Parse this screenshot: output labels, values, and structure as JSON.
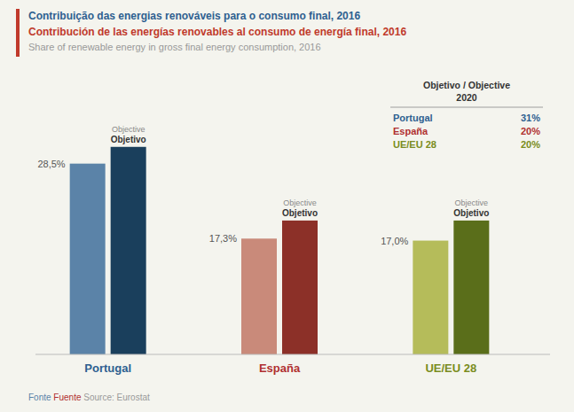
{
  "chart_data": {
    "type": "bar",
    "title": "Contribuição das energias renováveis para o consumo final, 2016",
    "subtitle": "Contribución de las energías renovables al consumo de energía final, 2016",
    "categories": [
      "Portugal",
      "España",
      "UE/EU 28"
    ],
    "colors": [
      "#2e6090",
      "#b03030",
      "#7a8c20"
    ],
    "series": [
      {
        "values": [
          28.5,
          17.3,
          17.0
        ],
        "value_labels": [
          "28,5%",
          "17,3%",
          "17,0%"
        ],
        "colors": [
          "#5b83a8",
          "#c98a7a",
          "#b5bc5a"
        ]
      },
      {
        "name": "Objetivo / Objective",
        "values": [
          31,
          20,
          20
        ],
        "value_labels": [
          "31%",
          "20%",
          "20%"
        ],
        "colors": [
          "#1a3f5c",
          "#8c3028",
          "#5a6e1a"
        ]
      }
    ],
    "ylim": [
      0,
      36
    ],
    "tick_labels": false,
    "grid": false,
    "data_labels": true,
    "annotations": [
      {
        "text": "Share of renewable energy in gross final energy consumption, 2016",
        "color": "#999999"
      },
      {
        "text": "2020"
      },
      {
        "text": "Objetivo"
      },
      {
        "text": "Objective",
        "color": "#888888"
      },
      {
        "text": "Fonte",
        "color": "#5b83a8"
      },
      {
        "text": " Fuente",
        "color": "#b03030"
      },
      {
        "text": " Source: ",
        "color": "#999999"
      },
      {
        "text": "Eurostat",
        "color": "#999999"
      }
    ]
  }
}
